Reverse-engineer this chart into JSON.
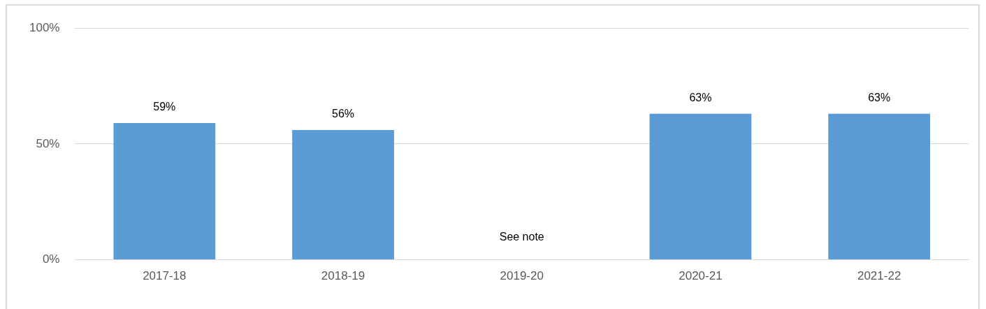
{
  "chart_data": {
    "type": "bar",
    "categories": [
      "2017-18",
      "2018-19",
      "2019-20",
      "2020-21",
      "2021-22"
    ],
    "values": [
      59,
      56,
      null,
      63,
      63
    ],
    "color": "#5b9bd5",
    "ylim": [
      0,
      100
    ],
    "yticks": [
      {
        "value": 0,
        "label": "0%"
      },
      {
        "value": 50,
        "label": "50%"
      },
      {
        "value": 100,
        "label": "100%"
      }
    ],
    "grid": "y",
    "value_labels": [
      "59%",
      "56%",
      null,
      "63%",
      "63%"
    ],
    "annotations": [
      "See note"
    ]
  }
}
